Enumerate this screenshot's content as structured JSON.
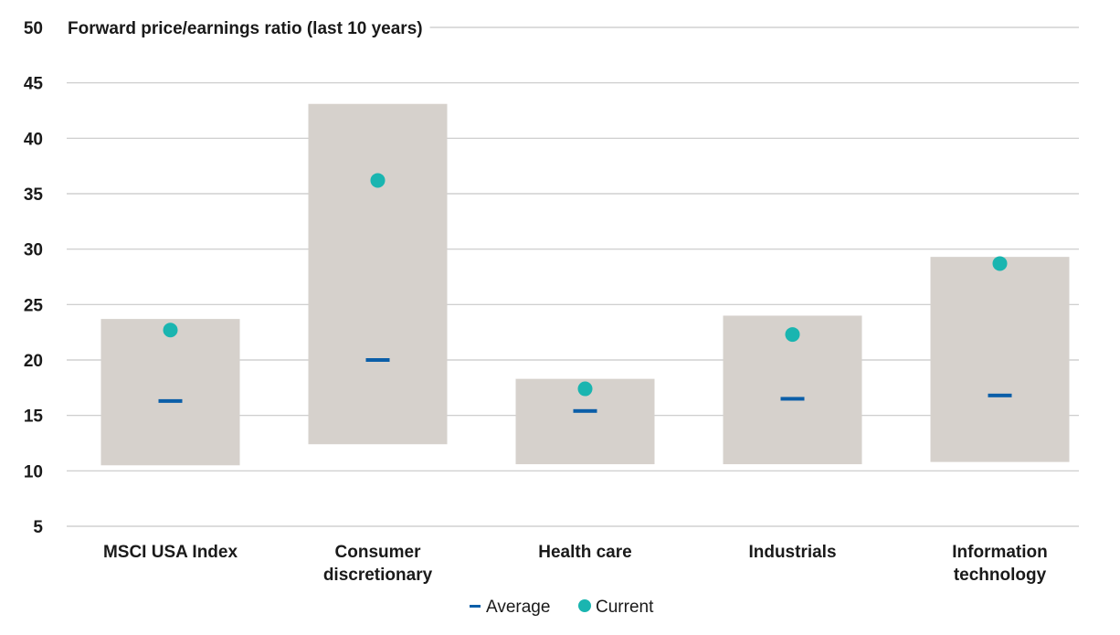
{
  "chart_data": {
    "type": "range",
    "title": "Forward price/earnings ratio (last 10 years)",
    "categories": [
      "MSCI USA Index",
      "Consumer discretionary",
      "Health care",
      "Industrials",
      "Information technology"
    ],
    "category_lines": [
      [
        "MSCI USA Index"
      ],
      [
        "Consumer",
        "discretionary"
      ],
      [
        "Health care"
      ],
      [
        "Industrials"
      ],
      [
        "Information",
        "technology"
      ]
    ],
    "range_low": [
      10.5,
      12.4,
      10.6,
      10.6,
      10.8
    ],
    "range_high": [
      23.7,
      43.1,
      18.3,
      24.0,
      29.3
    ],
    "average": [
      16.3,
      20.0,
      15.4,
      16.5,
      16.8
    ],
    "current": [
      22.7,
      36.2,
      17.4,
      22.3,
      28.7
    ],
    "ylim": [
      5,
      50
    ],
    "yticks": [
      5,
      10,
      15,
      20,
      25,
      30,
      35,
      40,
      45,
      50
    ],
    "grid": true,
    "legend_position": "bottom-center",
    "legend": {
      "average": "Average",
      "current": "Current"
    },
    "colors": {
      "range": "#d6d1cc",
      "average": "#0b5ea8",
      "current": "#1ab5b0",
      "grid": "#c8c8c8",
      "text": "#1a1a1a"
    }
  }
}
